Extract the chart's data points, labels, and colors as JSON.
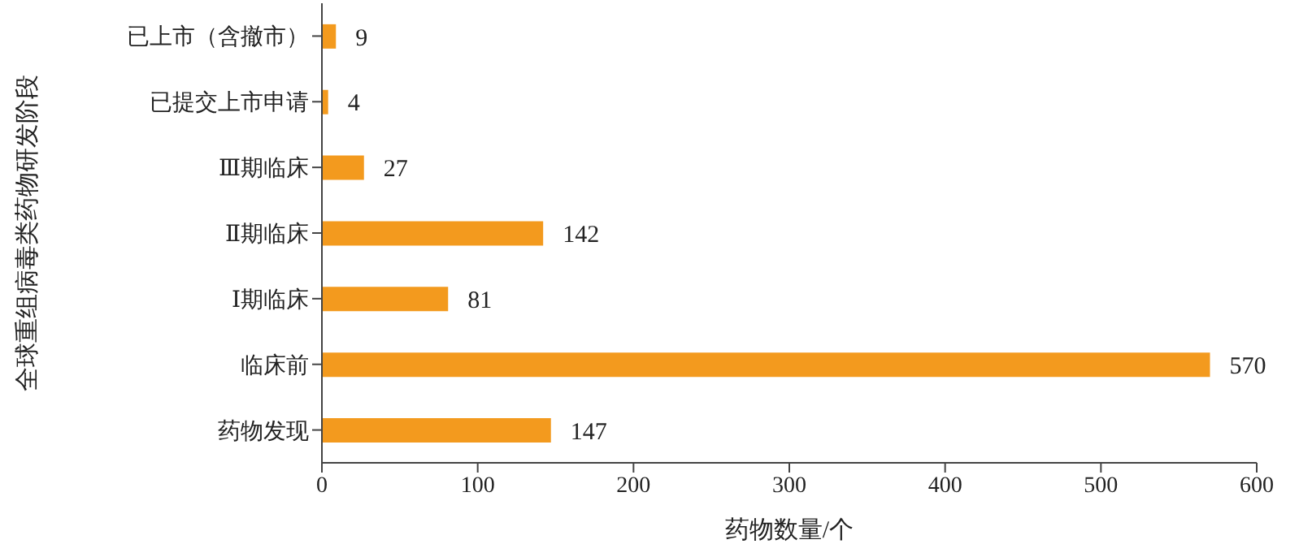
{
  "chart_data": {
    "type": "bar",
    "orientation": "horizontal",
    "xlabel": "药物数量/个",
    "ylabel": "全球重组病毒类药物研发阶段",
    "categories": [
      "已上市（含撤市）",
      "已提交上市申请",
      "Ⅲ期临床",
      "Ⅱ期临床",
      "Ⅰ期临床",
      "临床前",
      "药物发现"
    ],
    "values": [
      9,
      4,
      27,
      142,
      81,
      570,
      147
    ],
    "color": "#f39a1e",
    "xlim": [
      0,
      600
    ],
    "xticks": [
      0,
      100,
      200,
      300,
      400,
      500,
      600
    ],
    "grid": false,
    "legend": false,
    "data_labels": true
  }
}
